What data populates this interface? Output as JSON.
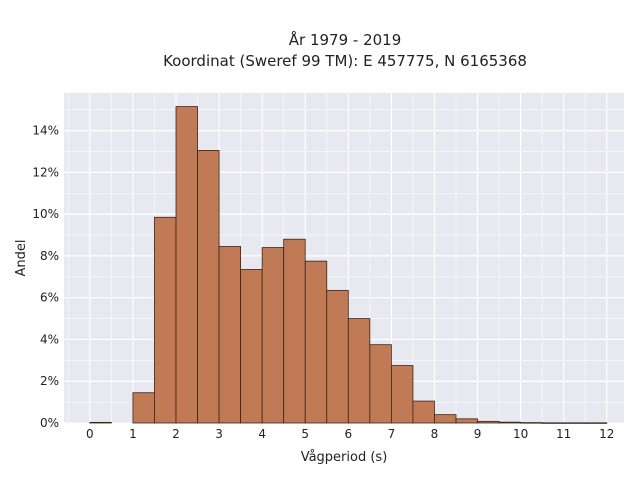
{
  "chart_data": {
    "type": "bar",
    "title_line1": "År 1979 - 2019",
    "title_line2": "Koordinat (Sweref 99 TM): E 457775, N 6165368",
    "xlabel": "Vågperiod (s)",
    "ylabel": "Andel",
    "xlim": [
      -0.6,
      12.4
    ],
    "ylim": [
      0,
      0.158
    ],
    "xticks": [
      0,
      1,
      2,
      3,
      4,
      5,
      6,
      7,
      8,
      9,
      10,
      11,
      12
    ],
    "xtick_labels": [
      "0",
      "1",
      "2",
      "3",
      "4",
      "5",
      "6",
      "7",
      "8",
      "9",
      "10",
      "11",
      "12"
    ],
    "yticks": [
      0,
      0.02,
      0.04,
      0.06,
      0.08,
      0.1,
      0.12,
      0.14
    ],
    "ytick_labels": [
      "0%",
      "2%",
      "4%",
      "6%",
      "8%",
      "10%",
      "12%",
      "14%"
    ],
    "bin_width": 0.5,
    "bin_starts": [
      0,
      0.5,
      1,
      1.5,
      2,
      2.5,
      3,
      3.5,
      4,
      4.5,
      5,
      5.5,
      6,
      6.5,
      7,
      7.5,
      8,
      8.5,
      9,
      9.5,
      10,
      10.5,
      11,
      11.5
    ],
    "values": [
      0.0003,
      0,
      0.0145,
      0.0985,
      0.1515,
      0.1305,
      0.0845,
      0.0735,
      0.084,
      0.088,
      0.0775,
      0.0635,
      0.05,
      0.0375,
      0.0275,
      0.0105,
      0.004,
      0.002,
      0.0008,
      0.0004,
      0.0002,
      0.0001,
      0.0001,
      0.0001
    ],
    "grid": true,
    "colors": {
      "bar": "#c07a55",
      "bar_edge": "#3a2418",
      "plot_bg": "#e8e8f0",
      "grid": "#ffffff"
    }
  }
}
